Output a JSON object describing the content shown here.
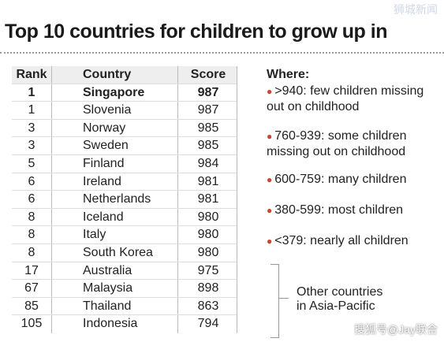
{
  "header": {
    "title": "Top 10 countries for children to grow up in",
    "watermark": "狮城新闻"
  },
  "table": {
    "columns": [
      "Rank",
      "Country",
      "Score"
    ],
    "rows": [
      [
        1,
        "Singapore",
        987
      ],
      [
        1,
        "Slovenia",
        987
      ],
      [
        3,
        "Norway",
        985
      ],
      [
        3,
        "Sweden",
        985
      ],
      [
        5,
        "Finland",
        984
      ],
      [
        6,
        "Ireland",
        981
      ],
      [
        6,
        "Netherlands",
        981
      ],
      [
        8,
        "Iceland",
        980
      ],
      [
        8,
        "Italy",
        980
      ],
      [
        8,
        "South Korea",
        980
      ],
      [
        17,
        "Australia",
        975
      ],
      [
        67,
        "Malaysia",
        898
      ],
      [
        85,
        "Thailand",
        863
      ],
      [
        105,
        "Indonesia",
        794
      ]
    ]
  },
  "legend": {
    "title": "Where:",
    "items": [
      ">940: few children missing out on childhood",
      "760-939: some children missing out on childhood",
      "600-759: many children",
      "380-599: most children",
      "<379: nearly all children"
    ]
  },
  "note": "Other countries in Asia-Pacific",
  "footer": {
    "watermark": "搜狐号@Jay联合"
  }
}
